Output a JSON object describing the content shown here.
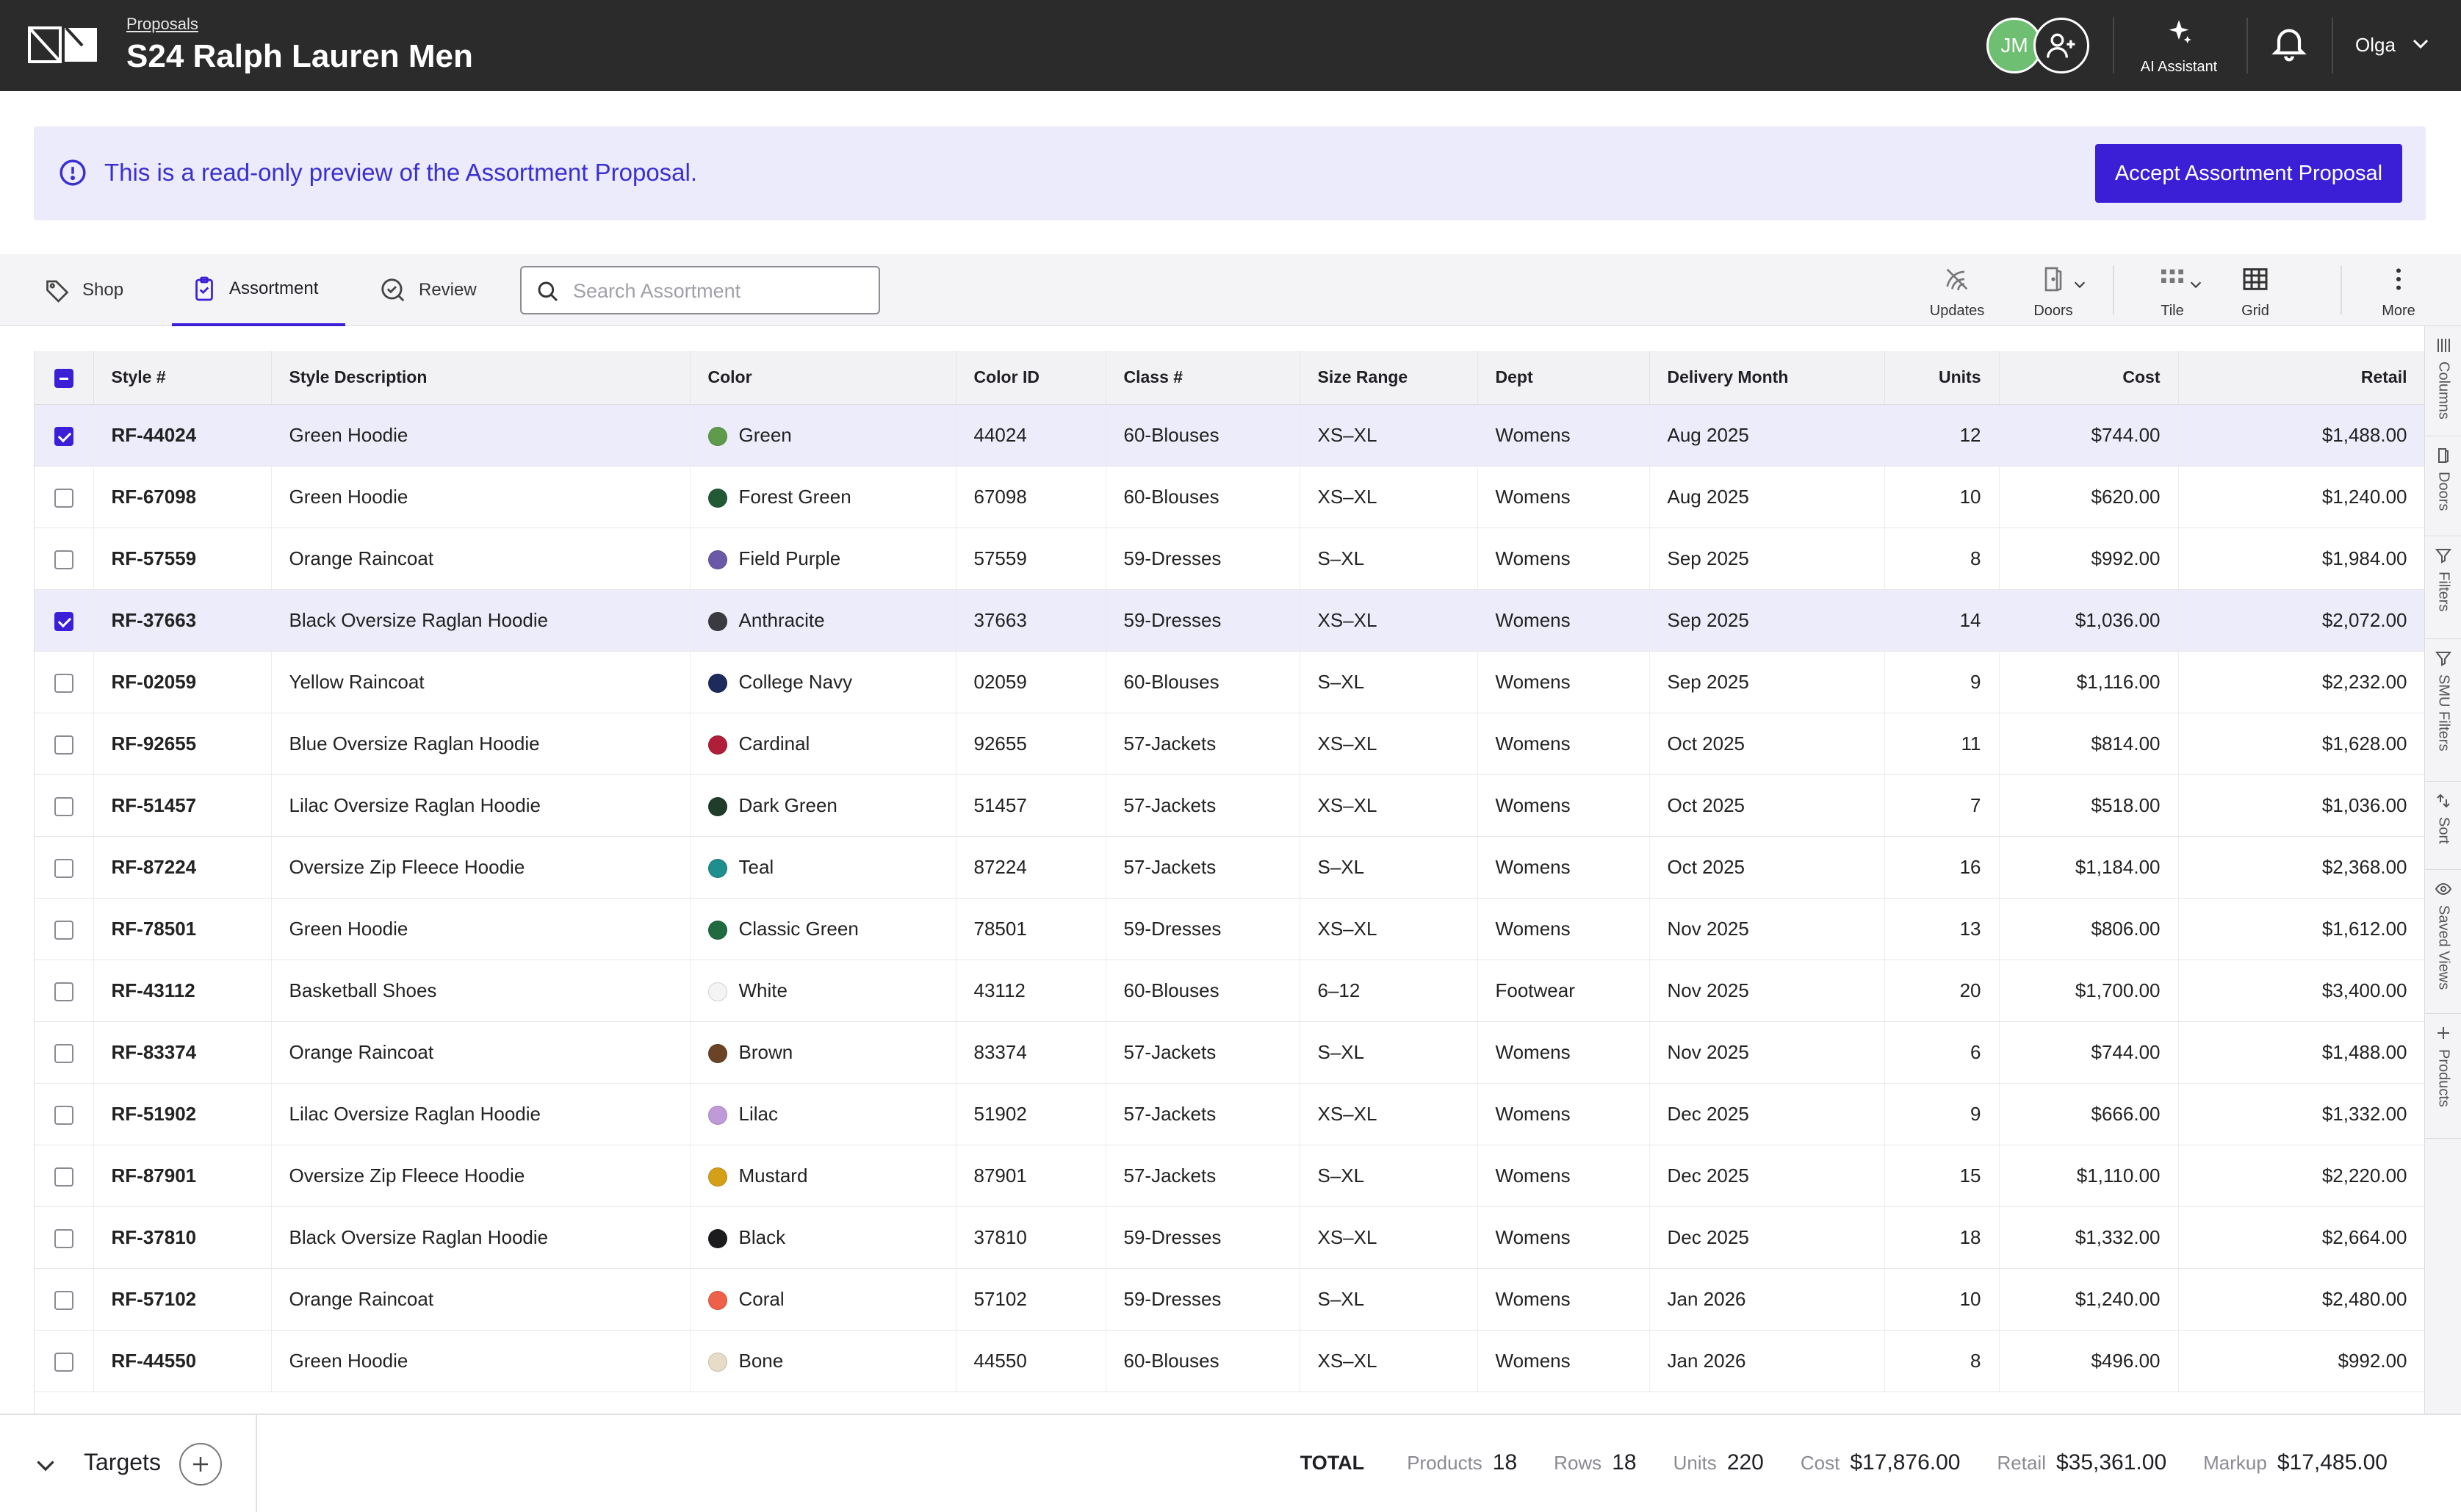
{
  "header": {
    "breadcrumb": "Proposals",
    "title": "S24 Ralph Lauren Men",
    "avatar_initials": "JM",
    "ai_label": "AI Assistant",
    "user_name": "Olga"
  },
  "banner": {
    "message": "This is a read-only preview of the Assortment Proposal.",
    "accept_label": "Accept Assortment Proposal"
  },
  "tabs": [
    {
      "label": "Shop",
      "icon": "tag-icon"
    },
    {
      "label": "Assortment",
      "icon": "clipboard-check-icon",
      "active": true
    },
    {
      "label": "Review",
      "icon": "check-circle-icon"
    }
  ],
  "search": {
    "placeholder": "Search Assortment"
  },
  "tools": {
    "updates": "Updates",
    "doors": "Doors",
    "tile": "Tile",
    "grid": "Grid",
    "more": "More"
  },
  "columns": [
    "Style #",
    "Style Description",
    "Color",
    "Color ID",
    "Class #",
    "Size Range",
    "Dept",
    "Delivery Month",
    "Units",
    "Cost",
    "Retail"
  ],
  "rows": [
    {
      "selected": true,
      "style": "RF-44024",
      "desc": "Green Hoodie",
      "color": "Green",
      "swatch": "#5e9b4a",
      "color_id": "44024",
      "class": "60-Blouses",
      "size": "XS–XL",
      "dept": "Womens",
      "month": "Aug 2025",
      "units": "12",
      "cost": "$744.00",
      "retail": "$1,488.00"
    },
    {
      "selected": false,
      "style": "RF-67098",
      "desc": "Green Hoodie",
      "color": "Forest Green",
      "swatch": "#235a36",
      "color_id": "67098",
      "class": "60-Blouses",
      "size": "XS–XL",
      "dept": "Womens",
      "month": "Aug 2025",
      "units": "10",
      "cost": "$620.00",
      "retail": "$1,240.00"
    },
    {
      "selected": false,
      "style": "RF-57559",
      "desc": "Orange Raincoat",
      "color": "Field Purple",
      "swatch": "#6b59a8",
      "color_id": "57559",
      "class": "59-Dresses",
      "size": "S–XL",
      "dept": "Womens",
      "month": "Sep 2025",
      "units": "8",
      "cost": "$992.00",
      "retail": "$1,984.00"
    },
    {
      "selected": true,
      "style": "RF-37663",
      "desc": "Black Oversize Raglan Hoodie",
      "color": "Anthracite",
      "swatch": "#3a3a40",
      "color_id": "37663",
      "class": "59-Dresses",
      "size": "XS–XL",
      "dept": "Womens",
      "month": "Sep 2025",
      "units": "14",
      "cost": "$1,036.00",
      "retail": "$2,072.00"
    },
    {
      "selected": false,
      "style": "RF-02059",
      "desc": "Yellow Raincoat",
      "color": "College Navy",
      "swatch": "#1c2a5c",
      "color_id": "02059",
      "class": "60-Blouses",
      "size": "S–XL",
      "dept": "Womens",
      "month": "Sep 2025",
      "units": "9",
      "cost": "$1,116.00",
      "retail": "$2,232.00"
    },
    {
      "selected": false,
      "style": "RF-92655",
      "desc": "Blue Oversize Raglan Hoodie",
      "color": "Cardinal",
      "swatch": "#b11e3a",
      "color_id": "92655",
      "class": "57-Jackets",
      "size": "XS–XL",
      "dept": "Womens",
      "month": "Oct 2025",
      "units": "11",
      "cost": "$814.00",
      "retail": "$1,628.00"
    },
    {
      "selected": false,
      "style": "RF-51457",
      "desc": "Lilac Oversize Raglan Hoodie",
      "color": "Dark Green",
      "swatch": "#1f3d2a",
      "color_id": "51457",
      "class": "57-Jackets",
      "size": "XS–XL",
      "dept": "Womens",
      "month": "Oct 2025",
      "units": "7",
      "cost": "$518.00",
      "retail": "$1,036.00"
    },
    {
      "selected": false,
      "style": "RF-87224",
      "desc": "Oversize Zip Fleece Hoodie",
      "color": "Teal",
      "swatch": "#1f8e8e",
      "color_id": "87224",
      "class": "57-Jackets",
      "size": "S–XL",
      "dept": "Womens",
      "month": "Oct 2025",
      "units": "16",
      "cost": "$1,184.00",
      "retail": "$2,368.00"
    },
    {
      "selected": false,
      "style": "RF-78501",
      "desc": "Green Hoodie",
      "color": "Classic Green",
      "swatch": "#1f6a3e",
      "color_id": "78501",
      "class": "59-Dresses",
      "size": "XS–XL",
      "dept": "Womens",
      "month": "Nov 2025",
      "units": "13",
      "cost": "$806.00",
      "retail": "$1,612.00"
    },
    {
      "selected": false,
      "style": "RF-43112",
      "desc": "Basketball Shoes",
      "color": "White",
      "swatch": "#f4f4f4",
      "color_id": "43112",
      "class": "60-Blouses",
      "size": "6–12",
      "dept": "Footwear",
      "month": "Nov 2025",
      "units": "20",
      "cost": "$1,700.00",
      "retail": "$3,400.00"
    },
    {
      "selected": false,
      "style": "RF-83374",
      "desc": "Orange Raincoat",
      "color": "Brown",
      "swatch": "#6b4326",
      "color_id": "83374",
      "class": "57-Jackets",
      "size": "S–XL",
      "dept": "Womens",
      "month": "Nov 2025",
      "units": "6",
      "cost": "$744.00",
      "retail": "$1,488.00"
    },
    {
      "selected": false,
      "style": "RF-51902",
      "desc": "Lilac Oversize Raglan Hoodie",
      "color": "Lilac",
      "swatch": "#c09ad8",
      "color_id": "51902",
      "class": "57-Jackets",
      "size": "XS–XL",
      "dept": "Womens",
      "month": "Dec 2025",
      "units": "9",
      "cost": "$666.00",
      "retail": "$1,332.00"
    },
    {
      "selected": false,
      "style": "RF-87901",
      "desc": "Oversize Zip Fleece Hoodie",
      "color": "Mustard",
      "swatch": "#d4a017",
      "color_id": "87901",
      "class": "57-Jackets",
      "size": "S–XL",
      "dept": "Womens",
      "month": "Dec 2025",
      "units": "15",
      "cost": "$1,110.00",
      "retail": "$2,220.00"
    },
    {
      "selected": false,
      "style": "RF-37810",
      "desc": "Black Oversize Raglan Hoodie",
      "color": "Black",
      "swatch": "#1c1c1e",
      "color_id": "37810",
      "class": "59-Dresses",
      "size": "XS–XL",
      "dept": "Womens",
      "month": "Dec 2025",
      "units": "18",
      "cost": "$1,332.00",
      "retail": "$2,664.00"
    },
    {
      "selected": false,
      "style": "RF-57102",
      "desc": "Orange Raincoat",
      "color": "Coral",
      "swatch": "#ee6148",
      "color_id": "57102",
      "class": "59-Dresses",
      "size": "S–XL",
      "dept": "Womens",
      "month": "Jan 2026",
      "units": "10",
      "cost": "$1,240.00",
      "retail": "$2,480.00"
    },
    {
      "selected": false,
      "style": "RF-44550",
      "desc": "Green Hoodie",
      "color": "Bone",
      "swatch": "#e6dcc8",
      "color_id": "44550",
      "class": "60-Blouses",
      "size": "XS–XL",
      "dept": "Womens",
      "month": "Jan 2026",
      "units": "8",
      "cost": "$496.00",
      "retail": "$992.00"
    }
  ],
  "rail": [
    "Columns",
    "Doors",
    "Filters",
    "SMU Filters",
    "Sort",
    "Saved Views",
    "Products"
  ],
  "footer": {
    "targets_label": "Targets",
    "total_label": "TOTAL",
    "products_label": "Products",
    "products": "18",
    "rows_label": "Rows",
    "rows": "18",
    "units_label": "Units",
    "units": "220",
    "cost_label": "Cost",
    "cost": "$17,876.00",
    "retail_label": "Retail",
    "retail": "$35,361.00",
    "markup_label": "Markup",
    "markup": "$17,485.00"
  },
  "colors": {
    "accent": "#3a1fd6",
    "banner_bg": "#ecebfb",
    "header_bg": "#2b2b2b",
    "selected_row": "#ececfa"
  }
}
